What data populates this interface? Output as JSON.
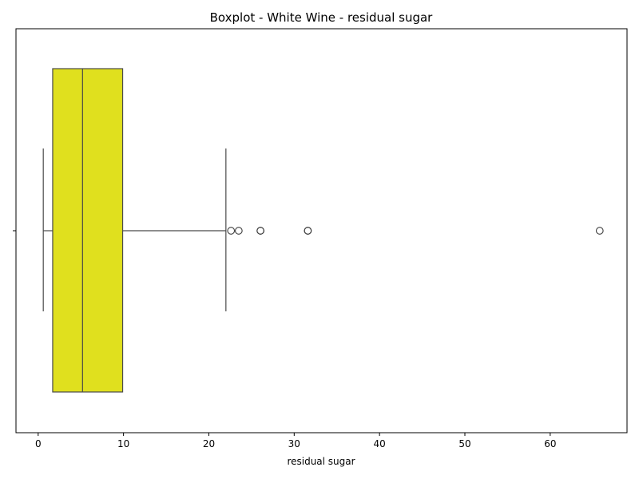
{
  "chart_data": {
    "type": "boxplot",
    "title": "Boxplot - White Wine - residual sugar",
    "xlabel": "residual sugar",
    "ylabel": "",
    "xlim": [
      -2.6,
      69.0
    ],
    "xticks": [
      0,
      10,
      20,
      30,
      40,
      50,
      60
    ],
    "grid": false,
    "legend": "none",
    "box": {
      "whisker_low": 0.6,
      "q1": 1.7,
      "median": 5.2,
      "q3": 9.9,
      "whisker_high": 22.0
    },
    "outliers": [
      22.6,
      23.5,
      26.05,
      26.05,
      31.6,
      31.6,
      65.8
    ],
    "colors": {
      "box_fill": "#E0E01E",
      "line": "#4a4a4a",
      "outlier_edge": "#3d3d3d"
    }
  }
}
